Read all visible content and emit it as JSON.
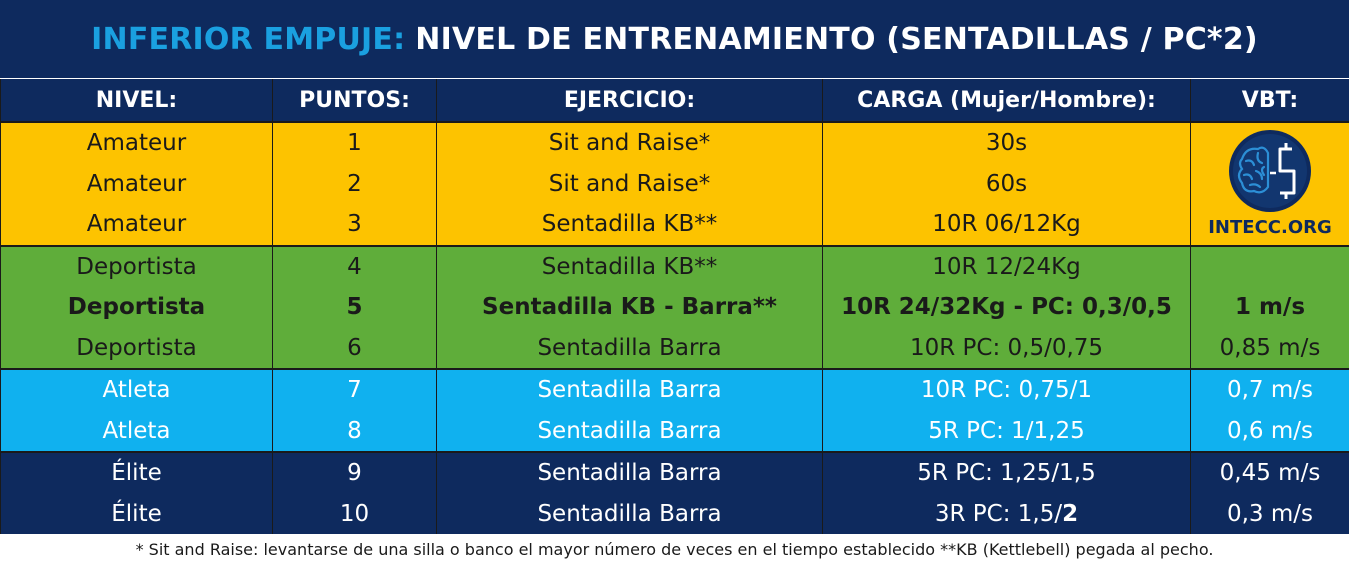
{
  "title": {
    "accent": "INFERIOR EMPUJE:",
    "main": "NIVEL DE ENTRENAMIENTO (SENTADILLAS / PC*2)"
  },
  "headers": {
    "nivel": "NIVEL:",
    "puntos": "PUNTOS:",
    "ejercicio": "EJERCICIO:",
    "carga": "CARGA (Mujer/Hombre):",
    "vbt": "VBT:"
  },
  "rows": [
    {
      "nivel": "Amateur",
      "puntos": "1",
      "ejercicio": "Sit and Raise*",
      "carga": "30s",
      "vbt": ""
    },
    {
      "nivel": "Amateur",
      "puntos": "2",
      "ejercicio": "Sit and Raise*",
      "carga": "60s",
      "vbt": ""
    },
    {
      "nivel": "Amateur",
      "puntos": "3",
      "ejercicio": "Sentadilla KB**",
      "carga": "10R 06/12Kg",
      "vbt": ""
    },
    {
      "nivel": "Deportista",
      "puntos": "4",
      "ejercicio": "Sentadilla KB**",
      "carga": "10R 12/24Kg",
      "vbt": ""
    },
    {
      "nivel": "Deportista",
      "puntos": "5",
      "ejercicio": "Sentadilla KB - Barra**",
      "carga": "10R 24/32Kg - PC: 0,3/0,5",
      "vbt": "1 m/s"
    },
    {
      "nivel": "Deportista",
      "puntos": "6",
      "ejercicio": "Sentadilla Barra",
      "carga": "10R PC: 0,5/0,75",
      "vbt": "0,85 m/s"
    },
    {
      "nivel": "Atleta",
      "puntos": "7",
      "ejercicio": "Sentadilla Barra",
      "carga": "10R PC: 0,75/1",
      "vbt": "0,7 m/s"
    },
    {
      "nivel": "Atleta",
      "puntos": "8",
      "ejercicio": "Sentadilla Barra",
      "carga": "5R PC: 1/1,25",
      "vbt": "0,6 m/s"
    },
    {
      "nivel": "Élite",
      "puntos": "9",
      "ejercicio": "Sentadilla Barra",
      "carga": "5R PC: 1,25/1,5",
      "vbt": "0,45 m/s"
    },
    {
      "nivel": "Élite",
      "puntos": "10",
      "ejercicio": "Sentadilla Barra",
      "carga": "3R PC: 1,5/",
      "carga_bold": "2",
      "vbt": "0,3 m/s"
    }
  ],
  "logo": {
    "text": "INTECC.ORG",
    "icon": "brain-s-logo-icon"
  },
  "colors": {
    "navy": "#0e2a5e",
    "accent": "#1aa0e0",
    "amateur": "#fdc300",
    "deportista": "#5fad3a",
    "atleta": "#10b1ef"
  },
  "footnote": "* Sit and Raise: levantarse de una silla o banco el mayor número de veces en el tiempo establecido **KB (Kettlebell) pegada al pecho."
}
